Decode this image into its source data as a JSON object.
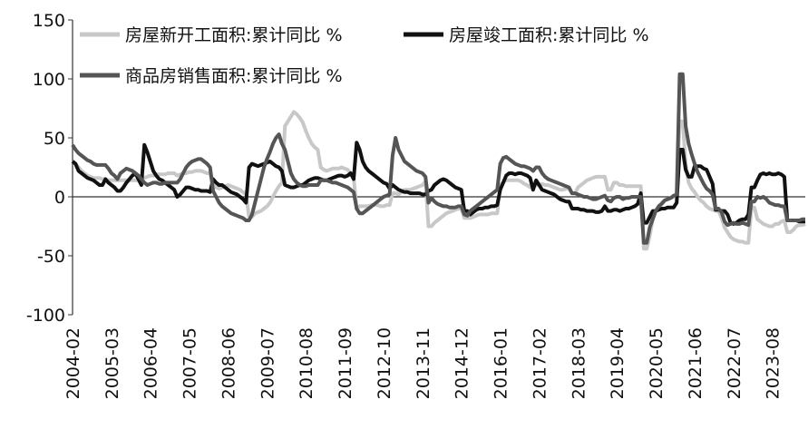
{
  "chart_data": {
    "type": "line",
    "categories": [
      "2004-02",
      null,
      null,
      null,
      null,
      null,
      null,
      null,
      null,
      null,
      null,
      null,
      null,
      "2005-03",
      null,
      null,
      null,
      null,
      null,
      null,
      null,
      null,
      null,
      null,
      null,
      null,
      "2006-04",
      null,
      null,
      null,
      null,
      null,
      null,
      null,
      null,
      null,
      null,
      null,
      null,
      "2007-05",
      null,
      null,
      null,
      null,
      null,
      null,
      null,
      null,
      null,
      null,
      null,
      null,
      "2008-06",
      null,
      null,
      null,
      null,
      null,
      null,
      null,
      null,
      null,
      null,
      null,
      null,
      "2009-07",
      null,
      null,
      null,
      null,
      null,
      null,
      null,
      null,
      null,
      null,
      null,
      null,
      "2010-08",
      null,
      null,
      null,
      null,
      null,
      null,
      null,
      null,
      null,
      null,
      null,
      null,
      "2011-09",
      null,
      null,
      null,
      null,
      null,
      null,
      null,
      null,
      null,
      null,
      null,
      null,
      "2012-10",
      null,
      null,
      null,
      null,
      null,
      null,
      null,
      null,
      null,
      null,
      null,
      null,
      "2013-11",
      null,
      null,
      null,
      null,
      null,
      null,
      null,
      null,
      null,
      null,
      null,
      null,
      "2014-12",
      null,
      null,
      null,
      null,
      null,
      null,
      null,
      null,
      null,
      null,
      null,
      null,
      "2016-01",
      null,
      null,
      null,
      null,
      null,
      null,
      null,
      null,
      null,
      null,
      null,
      null,
      "2017-02",
      null,
      null,
      null,
      null,
      null,
      null,
      null,
      null,
      null,
      null,
      null,
      null,
      "2018-03",
      null,
      null,
      null,
      null,
      null,
      null,
      null,
      null,
      null,
      null,
      null,
      null,
      "2019-04",
      null,
      null,
      null,
      null,
      null,
      null,
      null,
      null,
      null,
      null,
      null,
      null,
      "2020-05",
      null,
      null,
      null,
      null,
      null,
      null,
      null,
      null,
      null,
      null,
      null,
      null,
      "2021-06",
      null,
      null,
      null,
      null,
      null,
      null,
      null,
      null,
      null,
      null,
      null,
      null,
      "2022-07",
      null,
      null,
      null,
      null,
      null,
      null,
      null,
      null,
      null,
      null,
      null,
      null,
      "2023-08",
      null,
      null,
      null,
      null,
      null,
      null,
      null,
      null,
      null,
      null,
      null
    ],
    "series": [
      {
        "name": "房屋新开工面积:累计同比 %",
        "color": "#c8c8c8",
        "values": [
          30,
          28,
          25,
          22,
          20,
          18,
          17,
          16,
          16,
          16,
          15,
          15,
          14,
          14,
          14,
          14,
          14,
          14,
          14,
          14,
          14,
          14,
          14,
          15,
          16,
          17,
          18,
          18,
          19,
          19,
          19,
          19,
          20,
          20,
          20,
          18,
          19,
          20,
          20,
          21,
          21,
          22,
          22,
          22,
          21,
          20,
          20,
          10,
          8,
          7,
          8,
          9,
          10,
          9,
          8,
          7,
          6,
          4,
          2,
          -17,
          -17,
          -14,
          -13,
          -12,
          -10,
          -8,
          -5,
          0,
          5,
          9,
          12,
          60,
          64,
          68,
          72,
          70,
          67,
          63,
          56,
          50,
          45,
          42,
          40,
          25,
          23,
          22,
          23,
          24,
          24,
          24,
          25,
          24,
          23,
          20,
          16,
          -10,
          -8,
          -8,
          -8,
          -8,
          -7,
          -7,
          -7,
          -8,
          -8,
          -7,
          -7,
          3,
          3,
          2,
          4,
          6,
          6,
          6,
          7,
          8,
          9,
          10,
          13,
          -25,
          -25,
          -22,
          -20,
          -18,
          -16,
          -14,
          -13,
          -12,
          -11,
          -10,
          -10,
          -18,
          -18,
          -18,
          -17,
          -16,
          -15,
          -15,
          -15,
          -15,
          -14,
          -14,
          -14,
          10,
          12,
          14,
          14,
          14,
          14,
          14,
          13,
          11,
          10,
          8,
          8,
          10,
          10,
          11,
          10,
          10,
          9,
          8,
          7,
          6,
          6,
          7,
          7,
          3,
          3,
          8,
          10,
          12,
          14,
          15,
          16,
          17,
          17,
          17,
          17,
          6,
          6,
          12,
          12,
          10,
          10,
          9,
          9,
          9,
          9,
          9,
          9,
          -44,
          -44,
          -33,
          -19,
          -12,
          -8,
          -5,
          -3,
          -2,
          -1,
          0,
          3,
          64,
          64,
          28,
          12,
          7,
          4,
          0,
          -3,
          -5,
          -8,
          -10,
          -11,
          -12,
          -12,
          -18,
          -26,
          -30,
          -34,
          -36,
          -37,
          -38,
          -38,
          -39,
          -39,
          -9,
          -9,
          -19,
          -21,
          -23,
          -24,
          -25,
          -25,
          -23,
          -23,
          -21,
          -20,
          -30,
          -30,
          -28,
          -25,
          -24,
          -24,
          -23
        ]
      },
      {
        "name": "房屋竣工面积:累计同比 %",
        "color": "#111111",
        "values": [
          30,
          28,
          22,
          20,
          18,
          16,
          15,
          14,
          12,
          10,
          10,
          15,
          12,
          10,
          8,
          5,
          5,
          8,
          12,
          15,
          18,
          20,
          15,
          10,
          44,
          38,
          30,
          22,
          18,
          15,
          14,
          12,
          10,
          8,
          6,
          0,
          2,
          5,
          8,
          8,
          7,
          6,
          6,
          5,
          5,
          5,
          4,
          15,
          12,
          10,
          10,
          8,
          6,
          4,
          3,
          2,
          0,
          -2,
          -5,
          25,
          28,
          27,
          26,
          27,
          28,
          29,
          30,
          28,
          26,
          25,
          22,
          10,
          9,
          8,
          8,
          9,
          10,
          10,
          12,
          14,
          15,
          16,
          16,
          15,
          14,
          14,
          15,
          16,
          17,
          18,
          18,
          17,
          18,
          20,
          15,
          46,
          40,
          30,
          25,
          22,
          20,
          18,
          16,
          14,
          12,
          11,
          7,
          10,
          8,
          6,
          5,
          4,
          4,
          3,
          3,
          3,
          3,
          2,
          2,
          5,
          6,
          10,
          12,
          14,
          15,
          14,
          12,
          10,
          8,
          7,
          6,
          -12,
          -12,
          -15,
          -13,
          -11,
          -10,
          -10,
          -9,
          -9,
          -8,
          -8,
          -7,
          6,
          12,
          18,
          20,
          20,
          19,
          20,
          20,
          19,
          18,
          16,
          6,
          14,
          10,
          6,
          5,
          4,
          3,
          2,
          0,
          -2,
          -3,
          -4,
          -4,
          -10,
          -10,
          -10,
          -11,
          -11,
          -12,
          -12,
          -12,
          -13,
          -13,
          -12,
          -8,
          -12,
          -12,
          -11,
          -11,
          -12,
          -11,
          -10,
          -10,
          -9,
          -8,
          -6,
          3,
          -22,
          -22,
          -17,
          -12,
          -12,
          -11,
          -10,
          -10,
          -9,
          -9,
          -9,
          -5,
          40,
          40,
          23,
          17,
          17,
          26,
          26,
          26,
          24,
          23,
          17,
          11,
          -11,
          -11,
          -12,
          -12,
          -15,
          -22,
          -23,
          -22,
          -20,
          -19,
          -19,
          -15,
          8,
          8,
          14,
          19,
          20,
          19,
          20,
          19,
          19,
          20,
          19,
          17,
          -20,
          -20,
          -20,
          -20,
          -21,
          -21,
          -21
        ]
      },
      {
        "name": "商品房销售面积:累计同比 %",
        "color": "#555555",
        "values": [
          44,
          40,
          37,
          35,
          33,
          31,
          30,
          28,
          27,
          27,
          27,
          27,
          24,
          20,
          18,
          15,
          20,
          22,
          24,
          23,
          22,
          20,
          18,
          15,
          12,
          10,
          11,
          12,
          12,
          11,
          11,
          12,
          12,
          12,
          12,
          12,
          15,
          20,
          25,
          28,
          30,
          31,
          32,
          32,
          30,
          28,
          25,
          5,
          0,
          -5,
          -8,
          -10,
          -12,
          -14,
          -15,
          -16,
          -17,
          -18,
          -20,
          -20,
          -15,
          -5,
          5,
          15,
          25,
          32,
          38,
          45,
          50,
          53,
          45,
          40,
          30,
          20,
          15,
          12,
          10,
          9,
          9,
          10,
          10,
          10,
          10,
          14,
          14,
          14,
          13,
          12,
          12,
          11,
          10,
          9,
          8,
          6,
          4,
          -10,
          -14,
          -14,
          -12,
          -10,
          -8,
          -6,
          -4,
          -2,
          0,
          1,
          2,
          35,
          50,
          40,
          35,
          30,
          28,
          26,
          24,
          22,
          21,
          20,
          17,
          -5,
          -1,
          -4,
          -6,
          -7,
          -8,
          -8,
          -9,
          -9,
          -9,
          -8,
          -8,
          -15,
          -16,
          -12,
          -10,
          -8,
          -6,
          -4,
          -2,
          0,
          2,
          4,
          6,
          28,
          33,
          34,
          32,
          30,
          28,
          27,
          26,
          26,
          25,
          24,
          22,
          25,
          25,
          20,
          17,
          15,
          14,
          13,
          12,
          11,
          10,
          9,
          8,
          3,
          3,
          2,
          1,
          0,
          0,
          -1,
          -2,
          -2,
          -1,
          0,
          1,
          -3,
          -4,
          -1,
          0,
          0,
          -2,
          -1,
          -1,
          0,
          0,
          0,
          0,
          -39,
          -39,
          -26,
          -19,
          -12,
          -8,
          -6,
          -3,
          -2,
          -1,
          1,
          2,
          104,
          104,
          60,
          45,
          36,
          28,
          21,
          16,
          11,
          7,
          5,
          2,
          -10,
          -10,
          -13,
          -21,
          -24,
          -23,
          -22,
          -23,
          -23,
          -22,
          -23,
          -24,
          -4,
          -4,
          0,
          -1,
          0,
          -2,
          -5,
          -6,
          -7,
          -7,
          -8,
          -8,
          -20,
          -20,
          -20,
          -20,
          -20,
          -19,
          -19
        ]
      }
    ],
    "ylim": [
      -100,
      150
    ],
    "yticks": [
      -100,
      -50,
      0,
      50,
      100,
      150
    ],
    "grid": false
  }
}
